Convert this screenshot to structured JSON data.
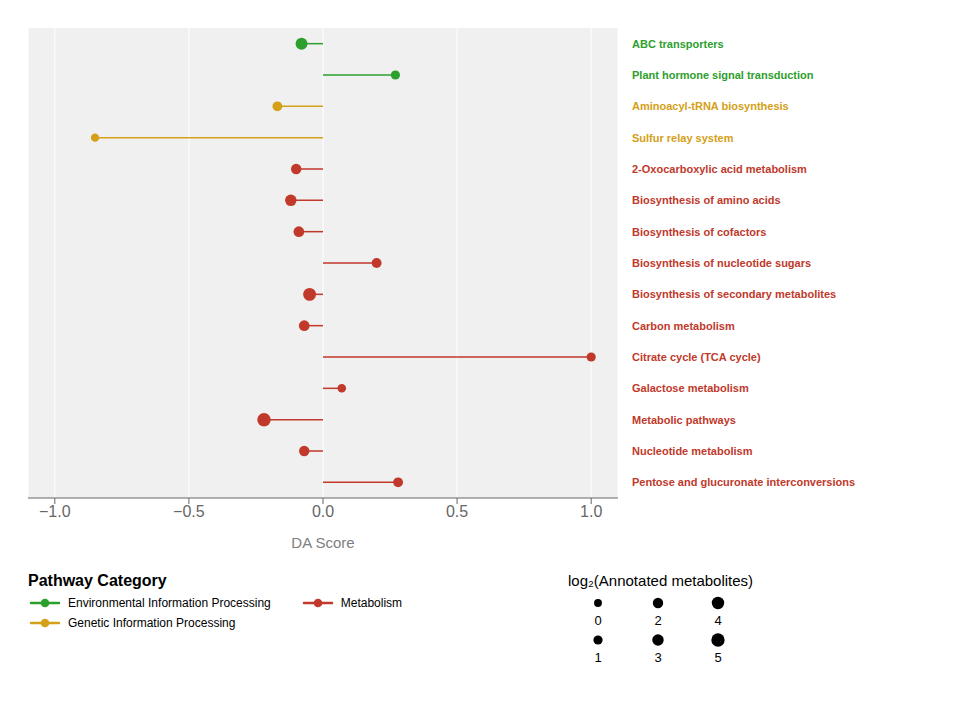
{
  "chart_data": {
    "type": "lollipop",
    "orientation": "horizontal",
    "categories": [
      "ABC transporters",
      "Plant hormone signal transduction",
      "Aminoacyl-tRNA biosynthesis",
      "Sulfur relay system",
      "2-Oxocarboxylic acid metabolism",
      "Biosynthesis of amino acids",
      "Biosynthesis of cofactors",
      "Biosynthesis of nucleotide sugars",
      "Biosynthesis of secondary metabolites",
      "Carbon metabolism",
      "Citrate cycle (TCA cycle)",
      "Galactose metabolism",
      "Metabolic pathways",
      "Nucleotide metabolism",
      "Pentose and glucuronate interconversions"
    ],
    "series": [
      {
        "name": "Environmental Information Processing",
        "color": "#2ca02c",
        "values": [
          -0.08,
          0.27,
          null,
          null,
          null,
          null,
          null,
          null,
          null,
          null,
          null,
          null,
          null,
          null,
          null
        ],
        "sizes": [
          3.5,
          1.0,
          null,
          null,
          null,
          null,
          null,
          null,
          null,
          null,
          null,
          null,
          null,
          null,
          null
        ]
      },
      {
        "name": "Metabolism",
        "color": "#c0392b",
        "values": [
          null,
          null,
          null,
          null,
          -0.1,
          -0.12,
          -0.09,
          0.2,
          -0.05,
          -0.07,
          1.0,
          0.07,
          -0.22,
          -0.07,
          0.28
        ],
        "sizes": [
          null,
          null,
          null,
          null,
          2.0,
          3.0,
          2.3,
          1.5,
          4.5,
          2.3,
          1.0,
          0.5,
          5.2,
          2.0,
          1.5
        ]
      },
      {
        "name": "Genetic Information Processing",
        "color": "#d4a017",
        "values": [
          null,
          null,
          -0.17,
          -0.85,
          null,
          null,
          null,
          null,
          null,
          null,
          null,
          null,
          null,
          null,
          null
        ],
        "sizes": [
          null,
          null,
          1.5,
          0.3,
          null,
          null,
          null,
          null,
          null,
          null,
          null,
          null,
          null,
          null,
          null
        ]
      }
    ],
    "xlabel": "DA Score",
    "xlim": [
      -1.1,
      1.1
    ],
    "xticks": [
      {
        "value": -1.0,
        "label": "−1.0"
      },
      {
        "value": -0.5,
        "label": "−0.5"
      },
      {
        "value": 0.0,
        "label": "0.0"
      },
      {
        "value": 0.5,
        "label": "0.5"
      },
      {
        "value": 1.0,
        "label": "1.0"
      }
    ],
    "grid": true,
    "legend": "bottom",
    "legend_title": "Pathway Category",
    "size_legend": {
      "title": "log₂(Annotated metabolites)",
      "values": [
        0,
        2,
        4,
        1,
        3,
        5
      ]
    }
  }
}
